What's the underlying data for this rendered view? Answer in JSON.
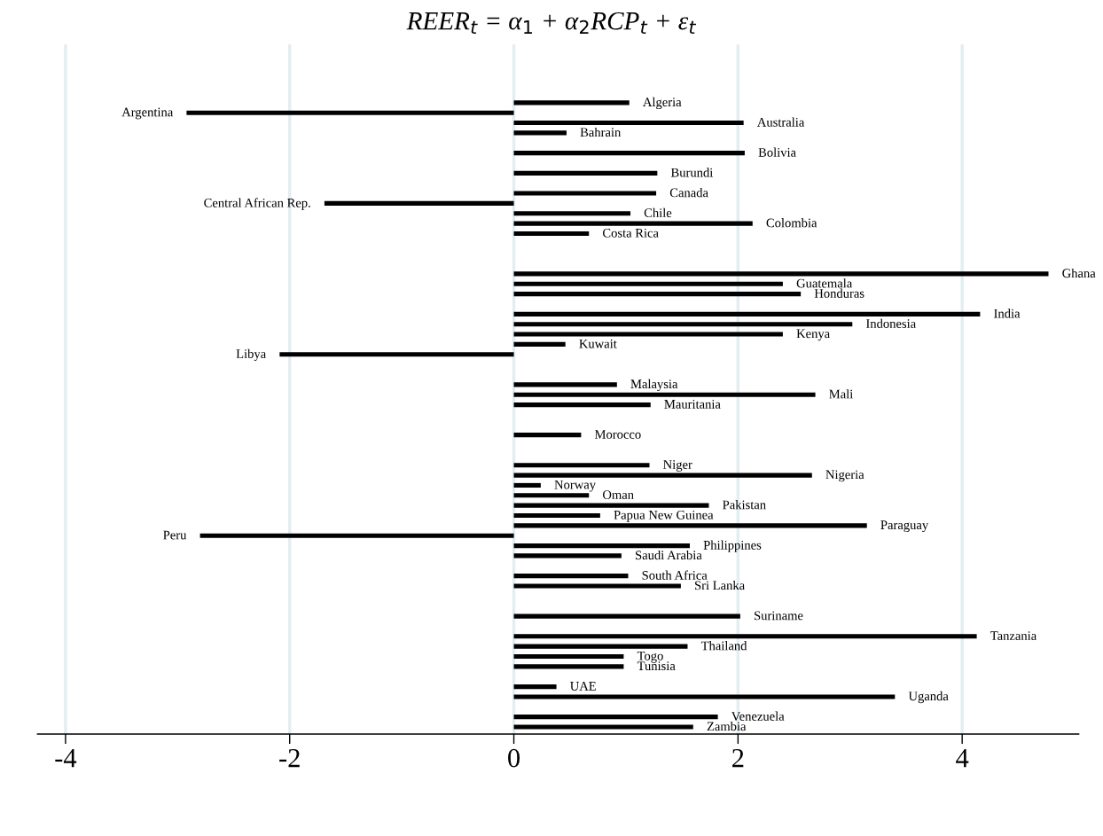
{
  "chart_data": {
    "type": "bar",
    "orientation": "horizontal",
    "title": "REER$_{t}$ = α$_{1}$ + α$_{2}$RCP$_{t}$ + ε$_{t}$",
    "categories": [
      "Algeria",
      "Argentina",
      "Australia",
      "Bahrain",
      null,
      "Bolivia",
      null,
      "Burundi",
      null,
      "Canada",
      "Central African Rep.",
      "Chile",
      "Colombia",
      "Costa Rica",
      null,
      null,
      null,
      "Ghana",
      "Guatemala",
      "Honduras",
      null,
      "India",
      "Indonesia",
      "Kenya",
      "Kuwait",
      "Libya",
      null,
      null,
      "Malaysia",
      "Mali",
      "Mauritania",
      null,
      null,
      "Morocco",
      null,
      null,
      "Niger",
      "Nigeria",
      "Norway",
      "Oman",
      "Pakistan",
      "Papua New Guinea",
      "Paraguay",
      "Peru",
      "Philippines",
      "Saudi Arabia",
      null,
      "South Africa",
      "Sri Lanka",
      null,
      null,
      "Suriname",
      null,
      "Tanzania",
      "Thailand",
      "Togo",
      "Tunisia",
      null,
      "UAE",
      "Uganda",
      null,
      "Venezuela",
      "Zambia"
    ],
    "values": [
      1.03,
      -2.92,
      2.05,
      0.47,
      null,
      2.06,
      null,
      1.28,
      null,
      1.27,
      -1.69,
      1.04,
      2.13,
      0.67,
      null,
      null,
      null,
      4.77,
      2.4,
      2.56,
      null,
      4.16,
      3.02,
      2.4,
      0.46,
      -2.09,
      null,
      null,
      0.92,
      2.69,
      1.22,
      null,
      null,
      0.6,
      null,
      null,
      1.21,
      2.66,
      0.24,
      0.67,
      1.74,
      0.77,
      3.15,
      -2.8,
      1.57,
      0.96,
      null,
      1.02,
      1.49,
      null,
      null,
      2.02,
      null,
      4.13,
      1.55,
      0.98,
      0.98,
      null,
      0.38,
      3.4,
      null,
      1.82,
      1.6
    ],
    "color": "#000000",
    "xlim": [
      -4.25,
      5.04
    ],
    "xticks": [
      -4,
      -2,
      0,
      2,
      4
    ],
    "grid": "x"
  }
}
